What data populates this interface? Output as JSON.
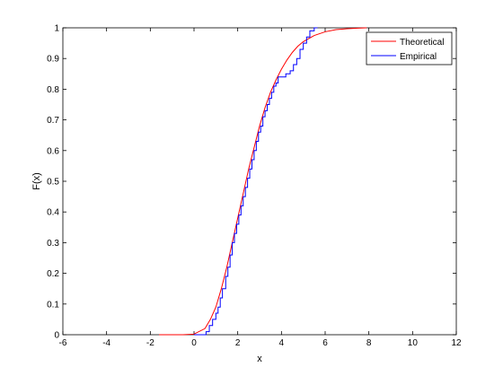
{
  "chart_data": {
    "type": "line",
    "xlabel": "x",
    "ylabel": "F(x)",
    "xlim": [
      -6,
      12
    ],
    "ylim": [
      0,
      1
    ],
    "xticks": [
      "-6",
      "-4",
      "-2",
      "0",
      "2",
      "4",
      "6",
      "8",
      "10",
      "12"
    ],
    "yticks": [
      "0",
      "0.1",
      "0.2",
      "0.3",
      "0.4",
      "0.5",
      "0.6",
      "0.7",
      "0.8",
      "0.9",
      "1"
    ],
    "legend": {
      "placement": "top-right"
    },
    "series": [
      {
        "name": "Theoretical",
        "color": "#ff0000",
        "style": "line",
        "x": [
          -1.6,
          -1.0,
          -0.5,
          0.0,
          0.5,
          0.75,
          1.0,
          1.25,
          1.5,
          1.75,
          2.0,
          2.25,
          2.5,
          2.75,
          3.0,
          3.25,
          3.5,
          3.75,
          4.0,
          4.25,
          4.5,
          4.75,
          5.0,
          5.5,
          6.0,
          6.5,
          7.0,
          7.5,
          7.9
        ],
        "y": [
          0,
          0,
          0,
          0.002,
          0.02,
          0.05,
          0.09,
          0.15,
          0.22,
          0.3,
          0.38,
          0.46,
          0.54,
          0.61,
          0.68,
          0.74,
          0.79,
          0.83,
          0.865,
          0.895,
          0.92,
          0.94,
          0.955,
          0.975,
          0.987,
          0.994,
          0.997,
          0.999,
          1.0
        ]
      },
      {
        "name": "Empirical",
        "color": "#0000ff",
        "style": "step",
        "x": [
          0.0,
          0.55,
          0.7,
          0.85,
          1.0,
          1.1,
          1.2,
          1.3,
          1.45,
          1.55,
          1.65,
          1.75,
          1.85,
          1.95,
          2.05,
          2.15,
          2.25,
          2.35,
          2.45,
          2.55,
          2.65,
          2.75,
          2.85,
          2.95,
          3.05,
          3.15,
          3.25,
          3.35,
          3.45,
          3.55,
          3.65,
          3.75,
          3.85,
          4.0,
          4.2,
          4.4,
          4.55,
          4.7,
          4.85,
          5.0,
          5.15,
          5.3,
          5.5
        ],
        "y": [
          0,
          0.01,
          0.03,
          0.05,
          0.07,
          0.09,
          0.12,
          0.15,
          0.19,
          0.22,
          0.26,
          0.3,
          0.33,
          0.36,
          0.39,
          0.42,
          0.45,
          0.48,
          0.51,
          0.54,
          0.57,
          0.6,
          0.63,
          0.66,
          0.68,
          0.71,
          0.73,
          0.75,
          0.77,
          0.79,
          0.81,
          0.82,
          0.84,
          0.84,
          0.85,
          0.86,
          0.88,
          0.9,
          0.93,
          0.95,
          0.97,
          0.99,
          1.0
        ]
      }
    ]
  }
}
